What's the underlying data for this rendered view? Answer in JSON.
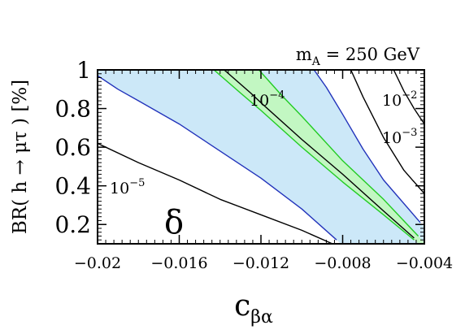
{
  "chart_data": {
    "type": "line",
    "title": "m_A = 250 GeV",
    "title_parts": {
      "main": "m",
      "sub": "A",
      "rest": " = 250 GeV"
    },
    "xlabel": {
      "main": "c",
      "sub": "βα"
    },
    "ylabel": "BR( h → μτ ) [%]",
    "xlim": [
      -0.02,
      -0.004
    ],
    "ylim": [
      0.1,
      1.0
    ],
    "xticks": [
      -0.02,
      -0.016,
      -0.012,
      -0.008,
      -0.004
    ],
    "xtick_labels": [
      "−0.02",
      "−0.016",
      "−0.012",
      "−0.008",
      "−0.004"
    ],
    "yticks": [
      0.2,
      0.4,
      0.6,
      0.8,
      1.0
    ],
    "ytick_labels": [
      "0.2",
      "0.4",
      "0.6",
      "0.8",
      "1"
    ],
    "grid": false,
    "panel_label": "δ",
    "colors": {
      "blue_fill": "#cce8f8",
      "green_fill": "#c2f7c2",
      "blue_line": "#2233bb",
      "green_line": "#22cc22",
      "black_line": "#000000"
    },
    "series": [
      {
        "name": "10^-5",
        "label_base": "10",
        "label_exp": "−5",
        "color": "black",
        "x": [
          -0.02,
          -0.018,
          -0.016,
          -0.014,
          -0.012,
          -0.01,
          -0.0085
        ],
        "y": [
          0.62,
          0.52,
          0.43,
          0.33,
          0.25,
          0.17,
          0.1
        ]
      },
      {
        "color": "blue",
        "x": [
          -0.02,
          -0.019,
          -0.018,
          -0.016,
          -0.014,
          -0.012,
          -0.01,
          -0.0083
        ],
        "y": [
          0.97,
          0.9,
          0.84,
          0.72,
          0.58,
          0.44,
          0.28,
          0.12
        ]
      },
      {
        "color": "green",
        "x": [
          -0.0143,
          -0.013,
          -0.012,
          -0.01,
          -0.008,
          -0.006,
          -0.0045
        ],
        "y": [
          1.0,
          0.88,
          0.79,
          0.6,
          0.42,
          0.25,
          0.12
        ]
      },
      {
        "name": "10^-4",
        "label_base": "10",
        "label_exp": "−4",
        "color": "black",
        "x": [
          -0.0138,
          -0.0125,
          -0.012,
          -0.01,
          -0.008,
          -0.006,
          -0.0045
        ],
        "y": [
          1.0,
          0.88,
          0.83,
          0.64,
          0.46,
          0.27,
          0.13
        ]
      },
      {
        "color": "green",
        "x": [
          -0.0121,
          -0.011,
          -0.01,
          -0.008,
          -0.006,
          -0.0043
        ],
        "y": [
          1.0,
          0.87,
          0.76,
          0.53,
          0.33,
          0.14
        ]
      },
      {
        "color": "blue",
        "x": [
          -0.0094,
          -0.0088,
          -0.008,
          -0.007,
          -0.006,
          -0.0042
        ],
        "y": [
          1.0,
          0.91,
          0.77,
          0.59,
          0.43,
          0.21
        ]
      },
      {
        "name": "10^-3",
        "label_base": "10",
        "label_exp": "−3",
        "color": "black",
        "x": [
          -0.0076,
          -0.007,
          -0.006,
          -0.005,
          -0.004
        ],
        "y": [
          1.0,
          0.86,
          0.65,
          0.48,
          0.36
        ]
      },
      {
        "name": "10^-2",
        "label_base": "10",
        "label_exp": "−2",
        "color": "black",
        "x": [
          -0.0055,
          -0.005,
          -0.0045,
          -0.004
        ],
        "y": [
          1.0,
          0.89,
          0.8,
          0.72
        ]
      }
    ],
    "bands": [
      {
        "color": "blue",
        "between_series": [
          1,
          5
        ]
      },
      {
        "color": "green",
        "between_series": [
          2,
          4
        ]
      }
    ]
  }
}
